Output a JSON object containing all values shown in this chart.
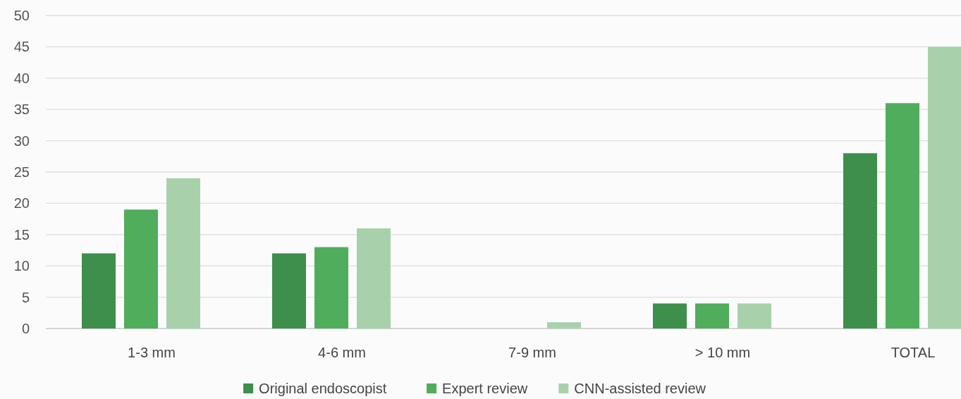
{
  "chart_data": {
    "type": "bar",
    "categories": [
      "1-3 mm",
      "4-6 mm",
      "7-9 mm",
      "> 10 mm",
      "TOTAL"
    ],
    "series": [
      {
        "name": "Original endoscopist",
        "color": "#3d8f4b",
        "values": [
          12,
          12,
          0,
          4,
          28
        ]
      },
      {
        "name": "Expert review",
        "color": "#4fad5b",
        "values": [
          19,
          13,
          0,
          4,
          36
        ]
      },
      {
        "name": "CNN-assisted review",
        "color": "#a8d1ab",
        "values": [
          24,
          16,
          1,
          4,
          45
        ]
      }
    ],
    "ylim": [
      0,
      50
    ],
    "yticks": [
      0,
      5,
      10,
      15,
      20,
      25,
      30,
      35,
      40,
      45,
      50
    ],
    "grid": "y",
    "legend": "bottom"
  }
}
